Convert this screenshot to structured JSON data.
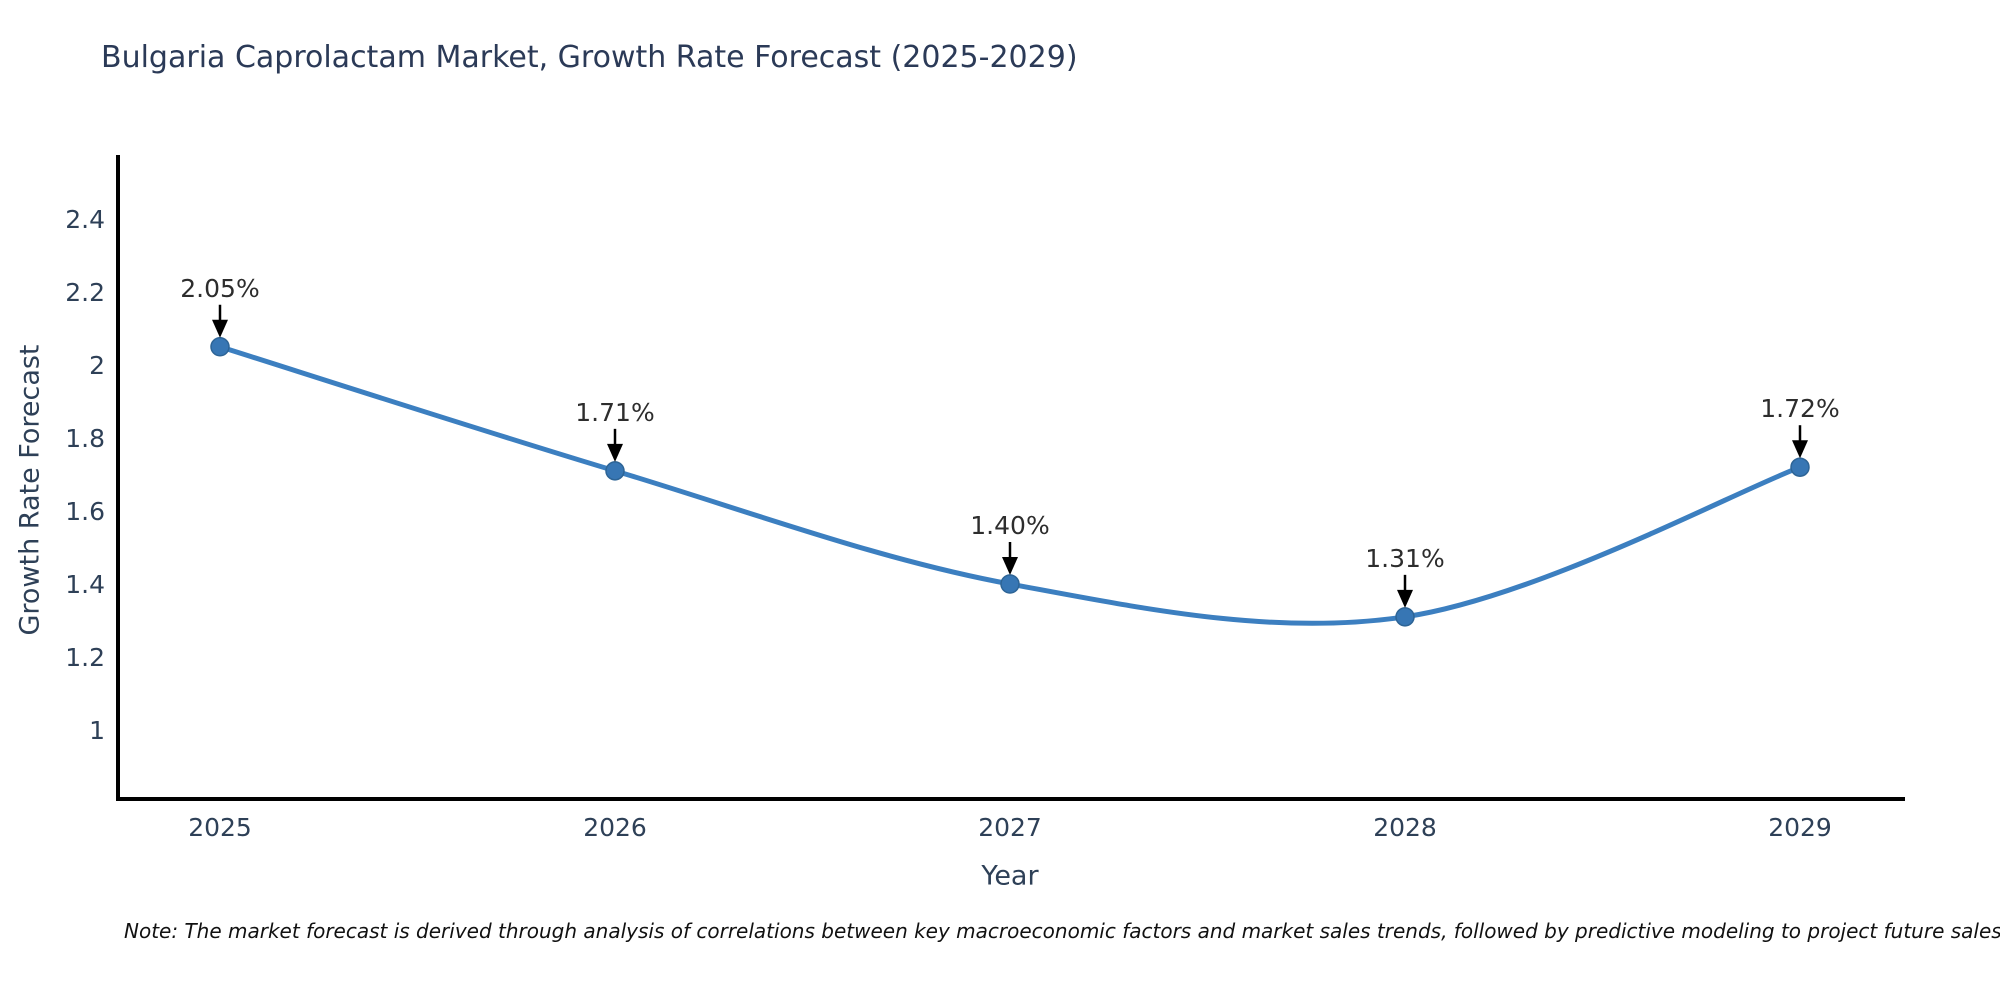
{
  "chart_data": {
    "type": "line",
    "title": "Bulgaria Caprolactam Market, Growth Rate Forecast (2025-2029)",
    "xlabel": "Year",
    "ylabel": "Growth Rate Forecast",
    "x": [
      2025,
      2026,
      2027,
      2028,
      2029
    ],
    "series": [
      {
        "name": "Growth Rate Forecast",
        "values": [
          2.05,
          1.71,
          1.4,
          1.31,
          1.72
        ],
        "point_labels": [
          "2.05%",
          "1.71%",
          "1.40%",
          "1.31%",
          "1.72%"
        ]
      }
    ],
    "yticks": [
      1,
      1.2,
      1.4,
      1.6,
      1.8,
      2,
      2.2,
      2.4
    ],
    "ylim": [
      0.8,
      2.57
    ],
    "grid": false,
    "legend": false,
    "line_shape": "spline",
    "colors": {
      "line": "#3c7fc0",
      "marker": "#3776b4",
      "marker_edge": "#2d6496",
      "axis": "#000000",
      "tick_text": "#2e4057",
      "annotation_text": "#2d2d2d",
      "arrow": "#000000"
    },
    "note": "Note: The market forecast is derived through analysis of correlations between key macroeconomic factors and market sales trends, followed by predictive modeling to project future sales"
  }
}
